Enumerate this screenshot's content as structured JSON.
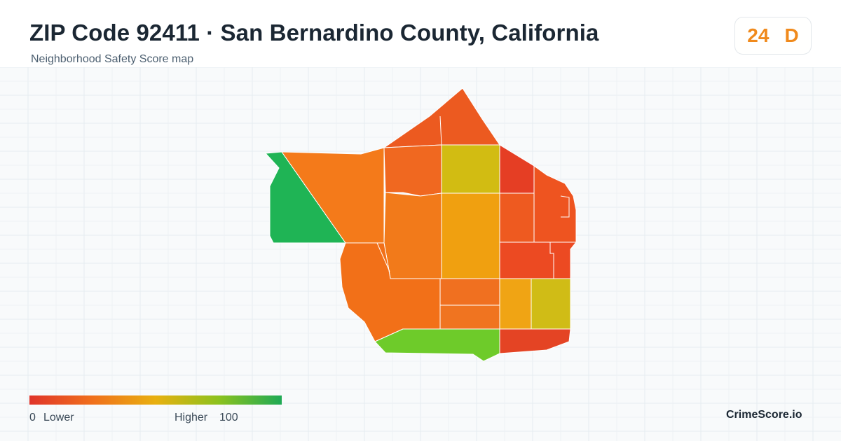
{
  "header": {
    "title": "ZIP Code 92411 · San Bernardino County, California",
    "subtitle": "Neighborhood Safety Score map"
  },
  "score_card": {
    "score": "24",
    "grade": "D",
    "color": "#f08a1c"
  },
  "legend": {
    "min_label": "0",
    "low_label": "Lower",
    "high_label": "Higher",
    "max_label": "100",
    "colors": [
      "#e0342a",
      "#f0701c",
      "#e8b010",
      "#8cc21e",
      "#1faa55"
    ]
  },
  "brand": "CrimeScore.io",
  "map": {
    "area_colors": {
      "northwest-area": "#1fb455",
      "west-area": "#f47a1a",
      "north-peak-area": "#ec5a20",
      "north-center-area": "#f06820",
      "north-yellow-area": "#d2bc12",
      "north-red-area": "#e53e24",
      "northeast-area": "#ee5420",
      "center-west-area": "#f27a1a",
      "center-area": "#f0a010",
      "center-east-area": "#ee5a20",
      "east-area": "#ec4a22",
      "southwest-area": "#f27018",
      "south-center-area": "#f2a212",
      "south-orange-area": "#f07020",
      "south-lower-area": "#f07420",
      "southeast-amber-area": "#f0a414",
      "southeast-yellow-area": "#d0bc16",
      "south-green-area": "#6ecb2a",
      "southeast-red-area": "#e44424"
    }
  }
}
